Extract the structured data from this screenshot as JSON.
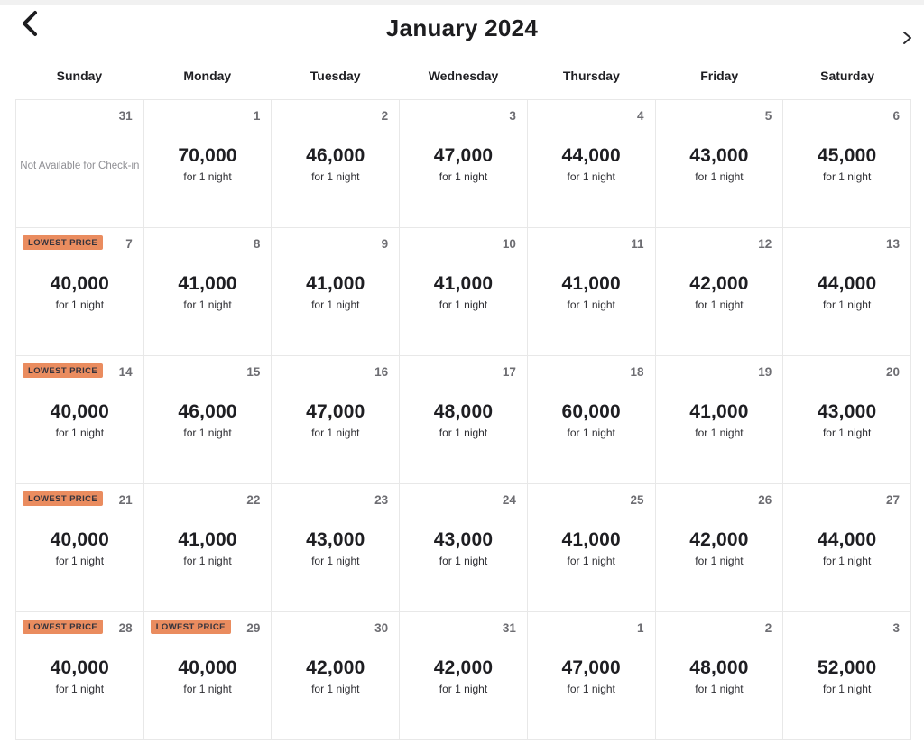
{
  "header": {
    "title": "January 2024",
    "prev_button": "previous-month",
    "next_button": "next-month"
  },
  "weekdays": [
    "Sunday",
    "Monday",
    "Tuesday",
    "Wednesday",
    "Thursday",
    "Friday",
    "Saturday"
  ],
  "calendar": {
    "lowest_price_label": "LOWEST PRICE",
    "per_night_label": "for 1 night",
    "unavailable_note": "Not Available for Check-in",
    "weeks": [
      [
        {
          "day": "31",
          "unavailable": true
        },
        {
          "day": "1",
          "price": "70,000"
        },
        {
          "day": "2",
          "price": "46,000"
        },
        {
          "day": "3",
          "price": "47,000"
        },
        {
          "day": "4",
          "price": "44,000"
        },
        {
          "day": "5",
          "price": "43,000"
        },
        {
          "day": "6",
          "price": "45,000"
        }
      ],
      [
        {
          "day": "7",
          "price": "40,000",
          "lowest": true
        },
        {
          "day": "8",
          "price": "41,000"
        },
        {
          "day": "9",
          "price": "41,000"
        },
        {
          "day": "10",
          "price": "41,000"
        },
        {
          "day": "11",
          "price": "41,000"
        },
        {
          "day": "12",
          "price": "42,000"
        },
        {
          "day": "13",
          "price": "44,000"
        }
      ],
      [
        {
          "day": "14",
          "price": "40,000",
          "lowest": true
        },
        {
          "day": "15",
          "price": "46,000"
        },
        {
          "day": "16",
          "price": "47,000"
        },
        {
          "day": "17",
          "price": "48,000"
        },
        {
          "day": "18",
          "price": "60,000"
        },
        {
          "day": "19",
          "price": "41,000"
        },
        {
          "day": "20",
          "price": "43,000"
        }
      ],
      [
        {
          "day": "21",
          "price": "40,000",
          "lowest": true
        },
        {
          "day": "22",
          "price": "41,000"
        },
        {
          "day": "23",
          "price": "43,000"
        },
        {
          "day": "24",
          "price": "43,000"
        },
        {
          "day": "25",
          "price": "41,000"
        },
        {
          "day": "26",
          "price": "42,000"
        },
        {
          "day": "27",
          "price": "44,000"
        }
      ],
      [
        {
          "day": "28",
          "price": "40,000",
          "lowest": true
        },
        {
          "day": "29",
          "price": "40,000",
          "lowest": true
        },
        {
          "day": "30",
          "price": "42,000"
        },
        {
          "day": "31",
          "price": "42,000"
        },
        {
          "day": "1",
          "price": "47,000"
        },
        {
          "day": "2",
          "price": "48,000"
        },
        {
          "day": "3",
          "price": "52,000"
        }
      ]
    ]
  },
  "colors": {
    "badge_background": "#EA8C5F",
    "badge_text": "#34333d",
    "price_text": "#1e1e22",
    "day_number": "#6d6d72",
    "grid_border": "#e8e8e8",
    "muted_note": "#8f8f94"
  }
}
